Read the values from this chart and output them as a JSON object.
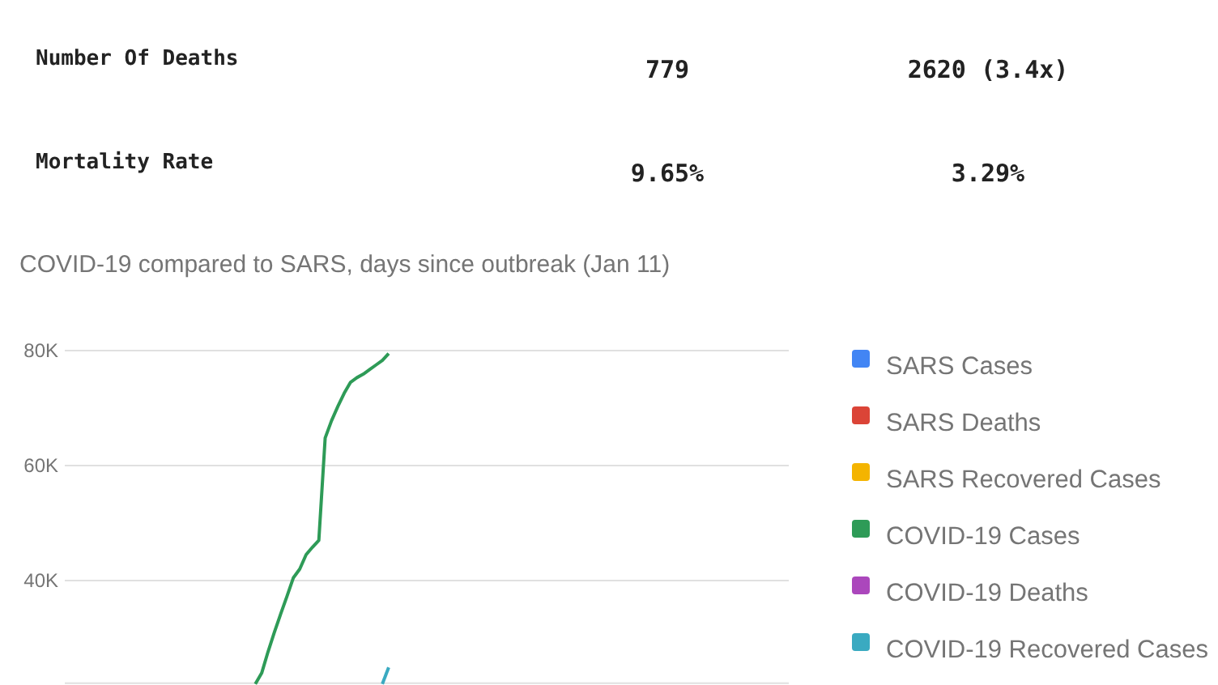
{
  "chart_data": [
    {
      "type": "other",
      "annotations": [
        "Number Of Deaths",
        "779",
        "2620 (3.4x)",
        "Mortality Rate",
        "9.65%",
        "3.29%"
      ]
    },
    {
      "type": "line",
      "title": "COVID-19 compared to SARS, days since outbreak (Jan 11)",
      "categories": [
        null,
        null,
        null,
        null,
        null,
        null,
        null,
        null,
        null,
        null,
        null,
        null,
        null,
        null,
        null,
        null,
        null,
        null,
        null,
        null,
        null,
        null,
        null,
        null,
        null,
        null,
        null,
        null,
        null,
        null,
        null,
        null,
        null,
        null,
        null,
        null,
        null,
        null,
        null,
        null,
        null,
        null,
        null,
        null,
        null,
        null,
        null,
        null,
        null,
        null,
        null,
        null,
        null,
        null,
        null,
        null,
        null,
        null,
        null,
        null,
        null,
        null,
        null,
        null,
        null,
        null,
        null,
        null,
        null,
        null,
        null,
        null,
        null,
        null,
        null,
        null,
        null,
        null,
        null,
        null,
        null,
        null,
        null,
        null,
        null,
        null,
        null,
        null,
        null,
        null,
        null,
        null,
        null,
        null,
        null,
        null,
        null,
        null,
        null,
        null,
        null,
        null,
        null,
        null,
        null,
        null,
        null,
        null,
        null,
        null,
        null,
        null,
        null,
        null,
        null
      ],
      "series": [
        {
          "name": "SARS Cases",
          "color": "#4285f4",
          "values": [
            null,
            null,
            null,
            null,
            null,
            null,
            null,
            null,
            null,
            null,
            null,
            null,
            null,
            null,
            null,
            null,
            null,
            null,
            null,
            null,
            null,
            null,
            null,
            null,
            null,
            null,
            null,
            null,
            null,
            null,
            null,
            null,
            null,
            null,
            null,
            null,
            null,
            null,
            null,
            null,
            null,
            null,
            null,
            null,
            null,
            null,
            null,
            null,
            null,
            null,
            null,
            null,
            null,
            null,
            null,
            null,
            null,
            null,
            null,
            null,
            null,
            null,
            null,
            null,
            null,
            null,
            null,
            null,
            null,
            null,
            null,
            null,
            null,
            null,
            null,
            null,
            null,
            null,
            null,
            null,
            null,
            null,
            null,
            null,
            null,
            null,
            null,
            null,
            null,
            null,
            null,
            null,
            null,
            null,
            null,
            null,
            null,
            null,
            null,
            null,
            null,
            null,
            null,
            null,
            null,
            null,
            null,
            null,
            null,
            null,
            null,
            null,
            null,
            null,
            null
          ]
        },
        {
          "name": "SARS Deaths",
          "color": "#db4437",
          "values": [
            null,
            null,
            null,
            null,
            null,
            null,
            null,
            null,
            null,
            null,
            null,
            null,
            null,
            null,
            null,
            null,
            null,
            null,
            null,
            null,
            null,
            null,
            null,
            null,
            null,
            null,
            null,
            null,
            null,
            null,
            null,
            null,
            null,
            null,
            null,
            null,
            null,
            null,
            null,
            null,
            null,
            null,
            null,
            null,
            null,
            null,
            null,
            null,
            null,
            null,
            null,
            null,
            null,
            null,
            null,
            null,
            null,
            null,
            null,
            null,
            null,
            null,
            null,
            null,
            null,
            null,
            null,
            null,
            null,
            null,
            null,
            null,
            null,
            null,
            null,
            null,
            null,
            null,
            null,
            null,
            null,
            null,
            null,
            null,
            null,
            null,
            null,
            null,
            null,
            null,
            null,
            null,
            null,
            null,
            null,
            null,
            null,
            null,
            null,
            null,
            null,
            null,
            null,
            null,
            null,
            null,
            null,
            null,
            null,
            null,
            null,
            null,
            null,
            null,
            null
          ]
        },
        {
          "name": "SARS Recovered Cases",
          "color": "#f4b400",
          "values": [
            null,
            null,
            null,
            null,
            null,
            null,
            null,
            null,
            null,
            null,
            null,
            null,
            null,
            null,
            null,
            null,
            null,
            null,
            null,
            null,
            null,
            null,
            null,
            null,
            null,
            null,
            null,
            null,
            null,
            null,
            null,
            null,
            null,
            null,
            null,
            null,
            null,
            null,
            null,
            null,
            null,
            null,
            null,
            null,
            null,
            null,
            null,
            null,
            null,
            null,
            null,
            null,
            null,
            null,
            null,
            null,
            null,
            null,
            null,
            null,
            null,
            null,
            null,
            null,
            null,
            null,
            null,
            null,
            null,
            null,
            null,
            null,
            null,
            null,
            null,
            null,
            null,
            null,
            null,
            null,
            null,
            null,
            null,
            null,
            null,
            null,
            null,
            null,
            null,
            null,
            null,
            null,
            null,
            null,
            null,
            null,
            null,
            null,
            null,
            null,
            null,
            null,
            null,
            null,
            null,
            null,
            null,
            null,
            null,
            null,
            null,
            null,
            null,
            null,
            null
          ]
        },
        {
          "name": "COVID-19 Cases",
          "color": "#2e9b57",
          "values": [
            null,
            null,
            null,
            null,
            null,
            null,
            null,
            null,
            null,
            null,
            null,
            null,
            null,
            null,
            null,
            null,
            null,
            null,
            null,
            null,
            null,
            null,
            null,
            null,
            null,
            null,
            null,
            null,
            null,
            null,
            22000,
            23900,
            27600,
            31000,
            34200,
            37300,
            40500,
            42000,
            44500,
            45800,
            47000,
            64800,
            67800,
            70300,
            72600,
            74500,
            75300,
            75900,
            76700,
            77500,
            78300,
            79500,
            null,
            null,
            null,
            null,
            null,
            null,
            null,
            null,
            null,
            null,
            null,
            null,
            null,
            null,
            null,
            null,
            null,
            null,
            null,
            null,
            null,
            null,
            null,
            null,
            null,
            null,
            null,
            null,
            null,
            null,
            null,
            null,
            null,
            null,
            null,
            null,
            null,
            null,
            null,
            null,
            null,
            null,
            null,
            null,
            null,
            null,
            null,
            null,
            null,
            null,
            null,
            null,
            null,
            null,
            null,
            null,
            null,
            null,
            null,
            null,
            null,
            null,
            null
          ]
        },
        {
          "name": "COVID-19 Deaths",
          "color": "#ab47bc",
          "values": [
            null,
            null,
            null,
            null,
            null,
            null,
            null,
            null,
            null,
            null,
            null,
            null,
            null,
            null,
            null,
            null,
            null,
            null,
            null,
            null,
            null,
            null,
            null,
            null,
            null,
            null,
            null,
            null,
            null,
            null,
            null,
            null,
            null,
            null,
            null,
            null,
            null,
            null,
            null,
            null,
            null,
            null,
            null,
            null,
            null,
            null,
            null,
            null,
            null,
            null,
            null,
            null,
            null,
            null,
            null,
            null,
            null,
            null,
            null,
            null,
            null,
            null,
            null,
            null,
            null,
            null,
            null,
            null,
            null,
            null,
            null,
            null,
            null,
            null,
            null,
            null,
            null,
            null,
            null,
            null,
            null,
            null,
            null,
            null,
            null,
            null,
            null,
            null,
            null,
            null,
            null,
            null,
            null,
            null,
            null,
            null,
            null,
            null,
            null,
            null,
            null,
            null,
            null,
            null,
            null,
            null,
            null,
            null,
            null,
            null,
            null,
            null,
            null,
            null,
            null
          ]
        },
        {
          "name": "COVID-19 Recovered Cases",
          "color": "#3aaac1",
          "values": [
            null,
            null,
            null,
            null,
            null,
            null,
            null,
            null,
            null,
            null,
            null,
            null,
            null,
            null,
            null,
            null,
            null,
            null,
            null,
            null,
            null,
            null,
            null,
            null,
            null,
            null,
            null,
            null,
            null,
            null,
            null,
            null,
            null,
            null,
            null,
            null,
            null,
            null,
            null,
            null,
            null,
            null,
            null,
            null,
            null,
            null,
            null,
            null,
            null,
            null,
            22000,
            24900,
            null,
            null,
            null,
            null,
            null,
            null,
            null,
            null,
            null,
            null,
            null,
            null,
            null,
            null,
            null,
            null,
            null,
            null,
            null,
            null,
            null,
            null,
            null,
            null,
            null,
            null,
            null,
            null,
            null,
            null,
            null,
            null,
            null,
            null,
            null,
            null,
            null,
            null,
            null,
            null,
            null,
            null,
            null,
            null,
            null,
            null,
            null,
            null,
            null,
            null,
            null,
            null,
            null,
            null,
            null,
            null,
            null,
            null,
            null,
            null,
            null,
            null,
            null
          ]
        }
      ],
      "ylim": [
        22000,
        80000
      ],
      "yticks": [
        {
          "value": 40000,
          "label": "40K"
        },
        {
          "value": 60000,
          "label": "60K"
        },
        {
          "value": 80000,
          "label": "80K"
        }
      ],
      "grid": "y",
      "legend": "right",
      "tick_labels": "y"
    }
  ]
}
